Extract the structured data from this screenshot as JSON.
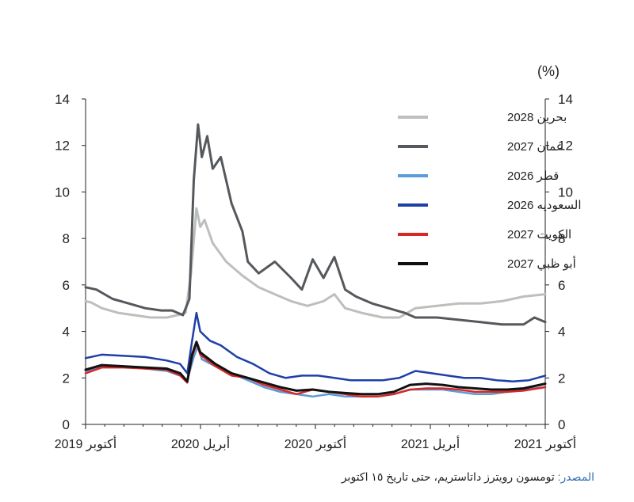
{
  "chart_data": {
    "type": "line",
    "unit_label": "(%)",
    "ylim": [
      0,
      14
    ],
    "y_ticks": [
      0,
      2,
      4,
      6,
      8,
      10,
      12,
      14
    ],
    "x_tick_labels": [
      "أكتوبر 2019",
      "أبريل 2020",
      "أكتوبر 2020",
      "أبريل 2021",
      "أكتوبر 2021"
    ],
    "legend_placement": "top-right",
    "grid": false,
    "series": [
      {
        "name": "بحرين 2028",
        "color": "#bdbfbd",
        "width": 3,
        "points": [
          [
            0,
            5.3
          ],
          [
            0.1,
            5.25
          ],
          [
            0.3,
            5.0
          ],
          [
            0.6,
            4.8
          ],
          [
            0.9,
            4.7
          ],
          [
            1.2,
            4.6
          ],
          [
            1.5,
            4.6
          ],
          [
            1.7,
            4.7
          ],
          [
            1.85,
            4.8
          ],
          [
            1.95,
            6.5
          ],
          [
            2.05,
            9.3
          ],
          [
            2.12,
            8.5
          ],
          [
            2.2,
            8.8
          ],
          [
            2.35,
            7.8
          ],
          [
            2.6,
            7.0
          ],
          [
            2.9,
            6.4
          ],
          [
            3.2,
            5.9
          ],
          [
            3.5,
            5.6
          ],
          [
            3.8,
            5.3
          ],
          [
            4.1,
            5.1
          ],
          [
            4.4,
            5.3
          ],
          [
            4.6,
            5.6
          ],
          [
            4.8,
            5.0
          ],
          [
            5.1,
            4.8
          ],
          [
            5.5,
            4.6
          ],
          [
            5.8,
            4.6
          ],
          [
            6.1,
            5.0
          ],
          [
            6.5,
            5.1
          ],
          [
            6.9,
            5.2
          ],
          [
            7.3,
            5.2
          ],
          [
            7.7,
            5.3
          ],
          [
            8.1,
            5.5
          ],
          [
            8.5,
            5.6
          ]
        ]
      },
      {
        "name": "عمان 2027",
        "color": "#55585c",
        "width": 3,
        "points": [
          [
            0,
            5.9
          ],
          [
            0.2,
            5.8
          ],
          [
            0.5,
            5.4
          ],
          [
            0.8,
            5.2
          ],
          [
            1.1,
            5.0
          ],
          [
            1.4,
            4.9
          ],
          [
            1.6,
            4.9
          ],
          [
            1.8,
            4.7
          ],
          [
            1.92,
            5.4
          ],
          [
            2.0,
            10.5
          ],
          [
            2.08,
            12.9
          ],
          [
            2.15,
            11.5
          ],
          [
            2.25,
            12.4
          ],
          [
            2.35,
            11.0
          ],
          [
            2.5,
            11.5
          ],
          [
            2.7,
            9.5
          ],
          [
            2.9,
            8.3
          ],
          [
            3.0,
            7.0
          ],
          [
            3.2,
            6.5
          ],
          [
            3.5,
            7.0
          ],
          [
            3.8,
            6.3
          ],
          [
            4.0,
            5.8
          ],
          [
            4.2,
            7.1
          ],
          [
            4.4,
            6.3
          ],
          [
            4.6,
            7.2
          ],
          [
            4.8,
            5.8
          ],
          [
            5.0,
            5.5
          ],
          [
            5.3,
            5.2
          ],
          [
            5.6,
            5.0
          ],
          [
            5.9,
            4.8
          ],
          [
            6.1,
            4.6
          ],
          [
            6.5,
            4.6
          ],
          [
            6.9,
            4.5
          ],
          [
            7.3,
            4.4
          ],
          [
            7.7,
            4.3
          ],
          [
            8.1,
            4.3
          ],
          [
            8.3,
            4.6
          ],
          [
            8.5,
            4.4
          ]
        ]
      },
      {
        "name": "قطر 2026",
        "color": "#5b9bd8",
        "width": 2.5,
        "points": [
          [
            0,
            2.3
          ],
          [
            0.3,
            2.5
          ],
          [
            0.7,
            2.5
          ],
          [
            1.1,
            2.4
          ],
          [
            1.5,
            2.3
          ],
          [
            1.75,
            2.1
          ],
          [
            1.88,
            1.9
          ],
          [
            2.0,
            2.9
          ],
          [
            2.08,
            3.4
          ],
          [
            2.15,
            2.8
          ],
          [
            2.4,
            2.5
          ],
          [
            2.7,
            2.2
          ],
          [
            3.0,
            1.9
          ],
          [
            3.3,
            1.6
          ],
          [
            3.6,
            1.4
          ],
          [
            3.9,
            1.3
          ],
          [
            4.2,
            1.2
          ],
          [
            4.5,
            1.3
          ],
          [
            4.8,
            1.2
          ],
          [
            5.1,
            1.2
          ],
          [
            5.4,
            1.2
          ],
          [
            5.7,
            1.3
          ],
          [
            6.0,
            1.5
          ],
          [
            6.3,
            1.5
          ],
          [
            6.6,
            1.5
          ],
          [
            6.9,
            1.4
          ],
          [
            7.2,
            1.3
          ],
          [
            7.5,
            1.3
          ],
          [
            7.8,
            1.4
          ],
          [
            8.1,
            1.5
          ],
          [
            8.5,
            1.6
          ]
        ]
      },
      {
        "name": "السعوديه 2026",
        "color": "#1f3fa8",
        "width": 2.5,
        "points": [
          [
            0,
            2.85
          ],
          [
            0.3,
            3.0
          ],
          [
            0.7,
            2.95
          ],
          [
            1.1,
            2.9
          ],
          [
            1.5,
            2.75
          ],
          [
            1.75,
            2.6
          ],
          [
            1.88,
            2.2
          ],
          [
            1.97,
            3.6
          ],
          [
            2.05,
            4.8
          ],
          [
            2.12,
            4.0
          ],
          [
            2.3,
            3.6
          ],
          [
            2.5,
            3.4
          ],
          [
            2.8,
            2.9
          ],
          [
            3.1,
            2.6
          ],
          [
            3.4,
            2.2
          ],
          [
            3.7,
            2.0
          ],
          [
            4.0,
            2.1
          ],
          [
            4.3,
            2.1
          ],
          [
            4.6,
            2.0
          ],
          [
            4.9,
            1.9
          ],
          [
            5.2,
            1.9
          ],
          [
            5.5,
            1.9
          ],
          [
            5.8,
            2.0
          ],
          [
            6.1,
            2.3
          ],
          [
            6.4,
            2.2
          ],
          [
            6.7,
            2.1
          ],
          [
            7.0,
            2.0
          ],
          [
            7.3,
            2.0
          ],
          [
            7.6,
            1.9
          ],
          [
            7.9,
            1.85
          ],
          [
            8.2,
            1.9
          ],
          [
            8.5,
            2.1
          ]
        ]
      },
      {
        "name": "الكويت 2027",
        "color": "#d62828",
        "width": 2.5,
        "points": [
          [
            0,
            2.2
          ],
          [
            0.3,
            2.45
          ],
          [
            0.7,
            2.45
          ],
          [
            1.1,
            2.4
          ],
          [
            1.5,
            2.35
          ],
          [
            1.75,
            2.1
          ],
          [
            1.88,
            1.8
          ],
          [
            1.97,
            2.9
          ],
          [
            2.05,
            3.5
          ],
          [
            2.12,
            3.0
          ],
          [
            2.4,
            2.5
          ],
          [
            2.7,
            2.1
          ],
          [
            3.0,
            2.0
          ],
          [
            3.3,
            1.7
          ],
          [
            3.6,
            1.5
          ],
          [
            3.9,
            1.3
          ],
          [
            4.2,
            1.5
          ],
          [
            4.5,
            1.4
          ],
          [
            4.8,
            1.3
          ],
          [
            5.1,
            1.2
          ],
          [
            5.4,
            1.2
          ],
          [
            5.7,
            1.3
          ],
          [
            6.0,
            1.5
          ],
          [
            6.3,
            1.55
          ],
          [
            6.6,
            1.55
          ],
          [
            6.9,
            1.5
          ],
          [
            7.2,
            1.4
          ],
          [
            7.5,
            1.4
          ],
          [
            7.8,
            1.4
          ],
          [
            8.1,
            1.45
          ],
          [
            8.5,
            1.6
          ]
        ]
      },
      {
        "name": "أبو ظبي 2027",
        "color": "#111111",
        "width": 3,
        "points": [
          [
            0,
            2.35
          ],
          [
            0.3,
            2.55
          ],
          [
            0.7,
            2.5
          ],
          [
            1.1,
            2.45
          ],
          [
            1.5,
            2.4
          ],
          [
            1.75,
            2.2
          ],
          [
            1.88,
            1.85
          ],
          [
            1.97,
            3.0
          ],
          [
            2.05,
            3.55
          ],
          [
            2.12,
            3.1
          ],
          [
            2.4,
            2.6
          ],
          [
            2.7,
            2.2
          ],
          [
            3.0,
            2.0
          ],
          [
            3.3,
            1.8
          ],
          [
            3.6,
            1.6
          ],
          [
            3.9,
            1.45
          ],
          [
            4.2,
            1.5
          ],
          [
            4.5,
            1.4
          ],
          [
            4.8,
            1.35
          ],
          [
            5.1,
            1.3
          ],
          [
            5.4,
            1.3
          ],
          [
            5.7,
            1.4
          ],
          [
            6.0,
            1.7
          ],
          [
            6.3,
            1.75
          ],
          [
            6.6,
            1.7
          ],
          [
            6.9,
            1.6
          ],
          [
            7.2,
            1.55
          ],
          [
            7.5,
            1.5
          ],
          [
            7.8,
            1.5
          ],
          [
            8.1,
            1.55
          ],
          [
            8.5,
            1.75
          ]
        ]
      }
    ]
  },
  "source": {
    "key": "المصدر:",
    "text": " تومسون رويترز داتاستريم، حتى تاريخ ١٥ اكتوبر"
  }
}
